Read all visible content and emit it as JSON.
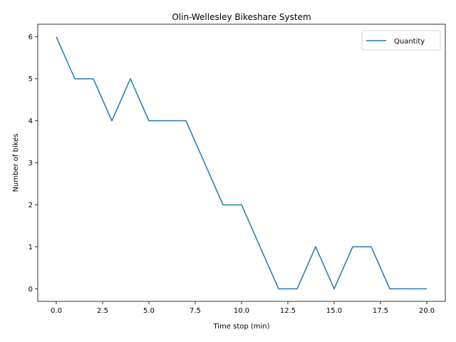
{
  "chart_data": {
    "type": "line",
    "title": "Olin-Wellesley Bikeshare System",
    "xlabel": "Time stop (min)",
    "ylabel": "Number of bikes",
    "xlim": [
      -1,
      21
    ],
    "ylim": [
      -0.3,
      6.3
    ],
    "xticks": [
      0.0,
      2.5,
      5.0,
      7.5,
      10.0,
      12.5,
      15.0,
      17.5,
      20.0
    ],
    "xtick_labels": [
      "0.0",
      "2.5",
      "5.0",
      "7.5",
      "10.0",
      "12.5",
      "15.0",
      "17.5",
      "20.0"
    ],
    "yticks": [
      0,
      1,
      2,
      3,
      4,
      5,
      6
    ],
    "ytick_labels": [
      "0",
      "1",
      "2",
      "3",
      "4",
      "5",
      "6"
    ],
    "grid": false,
    "legend_position": "top-right",
    "series": [
      {
        "name": "Quantity",
        "color": "#1f77b4",
        "x": [
          0,
          1,
          2,
          3,
          4,
          5,
          6,
          7,
          8,
          9,
          10,
          11,
          12,
          13,
          14,
          15,
          16,
          17,
          18,
          19,
          20
        ],
        "y": [
          6,
          5,
          5,
          4,
          5,
          4,
          4,
          4,
          3,
          2,
          2,
          1,
          0,
          0,
          1,
          0,
          1,
          1,
          0,
          0,
          0
        ]
      }
    ]
  }
}
